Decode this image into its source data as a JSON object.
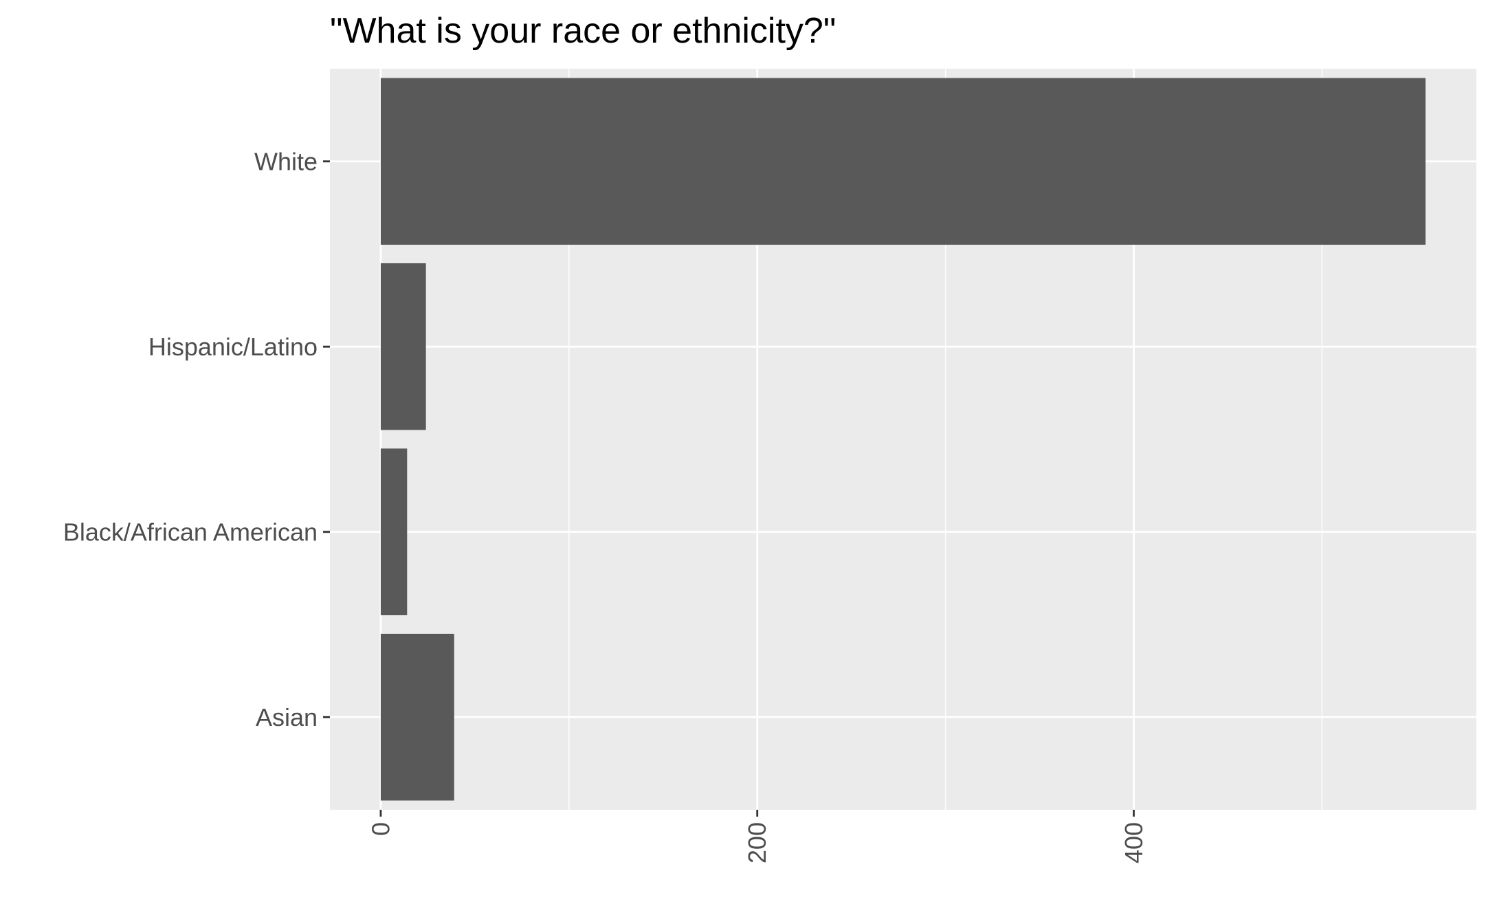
{
  "chart_data": {
    "type": "bar",
    "orientation": "horizontal",
    "title": "\"What is your race or ethnicity?\"",
    "xlabel": "",
    "ylabel": "",
    "categories": [
      "White",
      "Hispanic/Latino",
      "Black/African American",
      "Asian"
    ],
    "values": [
      555,
      24,
      14,
      39
    ],
    "xlim": [
      -27,
      582
    ],
    "x_ticks": [
      "0",
      "200",
      "400"
    ],
    "x_tick_values": [
      0,
      200,
      400
    ],
    "x_minor_grid_values": [
      100,
      300,
      500
    ],
    "x_tick_label_rotation": "vertical",
    "grid": true,
    "legend": "none",
    "colors": {
      "bar": "#595959",
      "panel_background": "#ebebeb",
      "grid": "#ffffff",
      "tick_text": "#4d4d4d",
      "tick_mark": "#333333",
      "title": "#000000"
    }
  }
}
